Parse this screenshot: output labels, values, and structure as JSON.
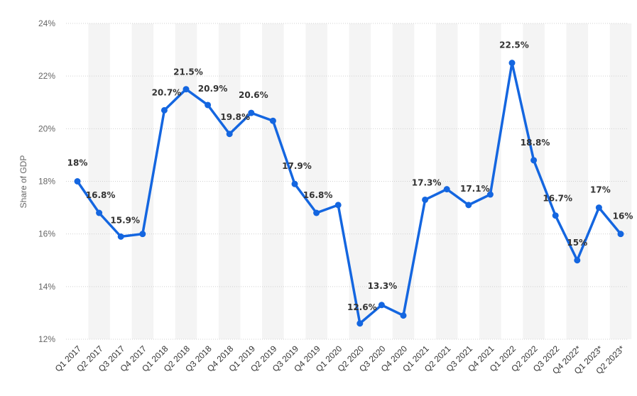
{
  "chart_data": {
    "type": "line",
    "ylabel": "Share of GDP",
    "y_unit": "%",
    "ylim": [
      12,
      24
    ],
    "yticks": [
      12,
      14,
      16,
      18,
      20,
      22,
      24
    ],
    "ytick_labels": [
      "12%",
      "14%",
      "16%",
      "18%",
      "20%",
      "22%",
      "24%"
    ],
    "grid": true,
    "alternating_column_shading": true,
    "line_color": "#1466e0",
    "categories": [
      "Q1 2017",
      "Q2 2017",
      "Q3 2017",
      "Q4 2017",
      "Q1 2018",
      "Q2 2018",
      "Q3 2018",
      "Q4 2018",
      "Q1 2019",
      "Q2 2019",
      "Q3 2019",
      "Q4 2019",
      "Q1 2020",
      "Q2 2020",
      "Q3 2020",
      "Q4 2020",
      "Q1 2021",
      "Q2 2021",
      "Q3 2021",
      "Q4 2021",
      "Q1 2022",
      "Q2 2022",
      "Q3 2022",
      "Q4 2022*",
      "Q1 2023*",
      "Q2 2023*"
    ],
    "series": [
      {
        "values": [
          18,
          16.8,
          15.9,
          16,
          20.7,
          21.5,
          20.9,
          19.8,
          20.6,
          20.3,
          17.9,
          16.8,
          17.1,
          12.6,
          13.3,
          12.9,
          17.3,
          17.7,
          17.1,
          17.5,
          22.5,
          18.8,
          16.7,
          15,
          17,
          16
        ]
      }
    ],
    "data_labels": [
      "18%",
      "16.8%",
      "15.9%",
      "",
      "20.7%",
      "21.5%",
      "20.9%",
      "19.8%",
      "20.6%",
      "",
      "17.9%",
      "16.8%",
      "",
      "12.6%",
      "13.3%",
      "",
      "17.3%",
      "",
      "17.1%",
      "",
      "22.5%",
      "18.8%",
      "16.7%",
      "15%",
      "17%",
      "16%"
    ]
  }
}
